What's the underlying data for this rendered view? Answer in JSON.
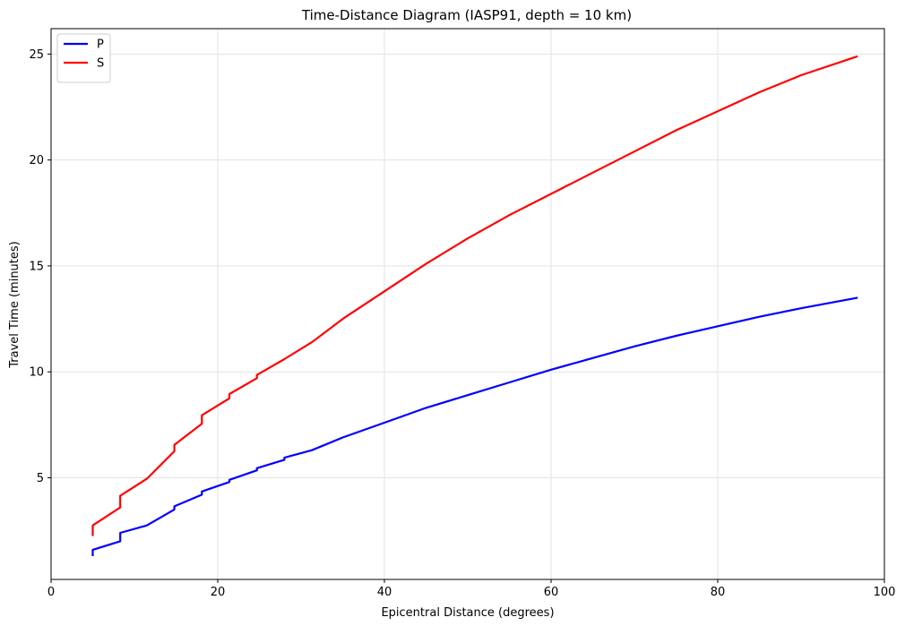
{
  "chart_data": {
    "type": "line",
    "title": "Time-Distance Diagram (IASP91, depth = 10 km)",
    "xlabel": "Epicentral Distance (degrees)",
    "ylabel": "Travel Time (minutes)",
    "xlim": [
      0,
      100
    ],
    "ylim": [
      0.2,
      26.2
    ],
    "xticks": [
      0,
      20,
      40,
      60,
      80,
      100
    ],
    "yticks": [
      5,
      10,
      15,
      20,
      25
    ],
    "grid": true,
    "legend": "top-left",
    "series": [
      {
        "name": "P",
        "color": "#0000ff",
        "x": [
          5.0,
          5.0,
          8.3,
          8.3,
          11.5,
          14.8,
          14.8,
          18.1,
          18.1,
          21.4,
          21.4,
          24.7,
          24.7,
          28.0,
          28.0,
          31.3,
          35,
          40,
          45,
          50,
          55,
          60,
          65,
          70,
          75,
          80,
          85,
          90,
          96.8
        ],
        "y": [
          1.3,
          1.6,
          2.0,
          2.4,
          2.75,
          3.5,
          3.65,
          4.2,
          4.35,
          4.8,
          4.9,
          5.35,
          5.45,
          5.85,
          5.95,
          6.3,
          6.9,
          7.6,
          8.3,
          8.9,
          9.5,
          10.1,
          10.65,
          11.2,
          11.7,
          12.15,
          12.6,
          13.0,
          13.5
        ]
      },
      {
        "name": "S",
        "color": "#ff0000",
        "x": [
          5.0,
          5.0,
          8.3,
          8.3,
          11.5,
          14.8,
          14.8,
          18.1,
          18.1,
          21.4,
          21.4,
          24.7,
          24.7,
          28.0,
          31.3,
          35,
          40,
          45,
          50,
          55,
          60,
          65,
          70,
          75,
          80,
          85,
          90,
          96.8
        ],
        "y": [
          2.25,
          2.75,
          3.6,
          4.15,
          4.95,
          6.25,
          6.55,
          7.55,
          7.95,
          8.75,
          8.95,
          9.7,
          9.85,
          10.6,
          11.4,
          12.5,
          13.8,
          15.1,
          16.3,
          17.4,
          18.4,
          19.4,
          20.4,
          21.4,
          22.3,
          23.2,
          24.0,
          24.9
        ]
      }
    ]
  }
}
